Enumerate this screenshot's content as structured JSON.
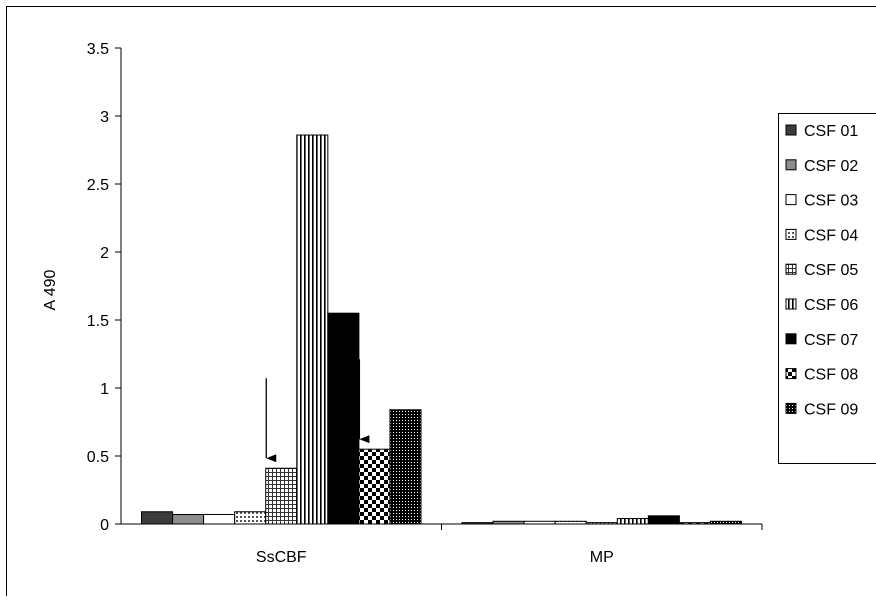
{
  "chart_data": {
    "type": "bar",
    "categories": [
      "SsCBF",
      "MP"
    ],
    "ylabel": "A 490",
    "xlabel": "",
    "ylim": [
      0,
      3.5
    ],
    "yticks": [
      "0",
      "0.5",
      "1",
      "1.5",
      "2",
      "2.5",
      "3",
      "3.5"
    ],
    "grid": false,
    "legend_position": "right",
    "series": [
      {
        "name": "CSF 01",
        "values": [
          0.09,
          0.01
        ],
        "pattern": "solid-dark"
      },
      {
        "name": "CSF 02",
        "values": [
          0.07,
          0.02
        ],
        "pattern": "solid-gray"
      },
      {
        "name": "CSF 03",
        "values": [
          0.07,
          0.02
        ],
        "pattern": "white"
      },
      {
        "name": "CSF 04",
        "values": [
          0.09,
          0.02
        ],
        "pattern": "dots"
      },
      {
        "name": "CSF 05",
        "values": [
          0.41,
          0.01
        ],
        "pattern": "grid"
      },
      {
        "name": "CSF 06",
        "values": [
          2.86,
          0.04
        ],
        "pattern": "vlines"
      },
      {
        "name": "CSF 07",
        "values": [
          1.55,
          0.06
        ],
        "pattern": "solid-black"
      },
      {
        "name": "CSF 08",
        "values": [
          0.55,
          0.01
        ],
        "pattern": "checker"
      },
      {
        "name": "CSF 09",
        "values": [
          0.84,
          0.02
        ],
        "pattern": "dense-dots"
      }
    ],
    "annotations": [
      {
        "type": "arrow",
        "category": "SsCBF",
        "series": "CSF 05"
      },
      {
        "type": "arrow",
        "category": "SsCBF",
        "series": "CSF 08"
      }
    ]
  }
}
